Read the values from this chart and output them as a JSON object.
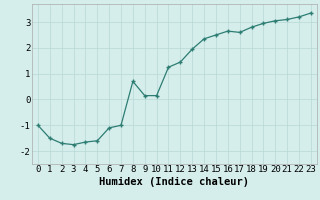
{
  "x": [
    0,
    1,
    2,
    3,
    4,
    5,
    6,
    7,
    8,
    9,
    10,
    11,
    12,
    13,
    14,
    15,
    16,
    17,
    18,
    19,
    20,
    21,
    22,
    23
  ],
  "y": [
    -1.0,
    -1.5,
    -1.7,
    -1.75,
    -1.65,
    -1.6,
    -1.1,
    -1.0,
    0.7,
    0.15,
    0.15,
    1.25,
    1.45,
    1.95,
    2.35,
    2.5,
    2.65,
    2.6,
    2.8,
    2.95,
    3.05,
    3.1,
    3.2,
    3.35
  ],
  "xlabel": "Humidex (Indice chaleur)",
  "xlim": [
    -0.5,
    23.5
  ],
  "ylim": [
    -2.5,
    3.7
  ],
  "yticks": [
    -2,
    -1,
    0,
    1,
    2,
    3
  ],
  "xticks": [
    0,
    1,
    2,
    3,
    4,
    5,
    6,
    7,
    8,
    9,
    10,
    11,
    12,
    13,
    14,
    15,
    16,
    17,
    18,
    19,
    20,
    21,
    22,
    23
  ],
  "line_color": "#2d7d73",
  "marker": "+",
  "bg_color": "#d5eeec",
  "grid_color": "#b8d8d5",
  "tick_label_fontsize": 6.5,
  "xlabel_fontsize": 7.5
}
